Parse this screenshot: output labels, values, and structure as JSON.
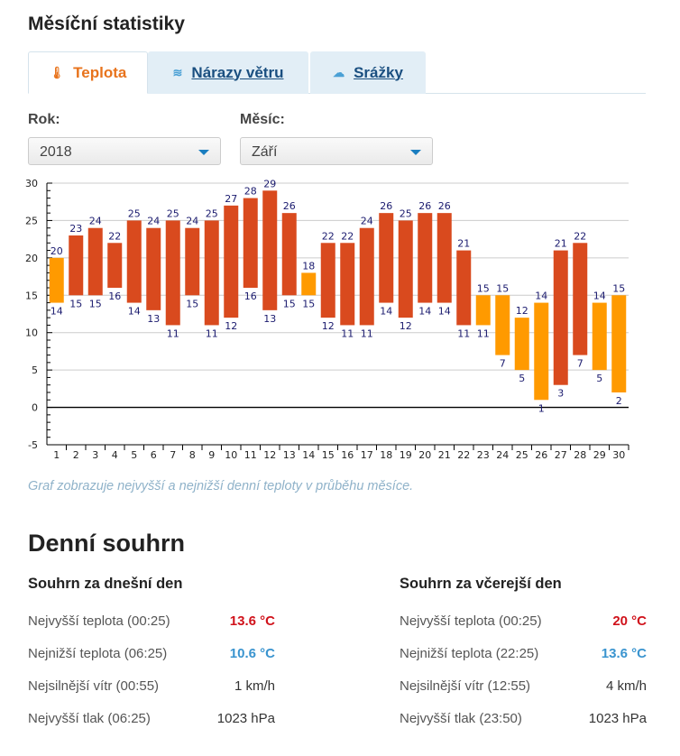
{
  "title": "Měsíční statistiky",
  "tabs": [
    {
      "label": "Teplota",
      "icon": "thermometer-icon"
    },
    {
      "label": "Nárazy větru",
      "icon": "wind-icon"
    },
    {
      "label": "Srážky",
      "icon": "rain-cloud-icon"
    }
  ],
  "filters": {
    "year_label": "Rok:",
    "year_value": "2018",
    "month_label": "Měsíc:",
    "month_value": "Září"
  },
  "colors": {
    "hot": "#d94a1e",
    "mild": "#ff9a00",
    "label": "#1a1a6e"
  },
  "chart_data": {
    "type": "bar",
    "title": "",
    "xlabel": "",
    "ylabel": "",
    "ylim": [
      -5,
      30
    ],
    "yticks": [
      -5,
      0,
      5,
      10,
      15,
      20,
      25,
      30
    ],
    "grid": true,
    "categories": [
      "1",
      "2",
      "3",
      "4",
      "5",
      "6",
      "7",
      "8",
      "9",
      "10",
      "11",
      "12",
      "13",
      "14",
      "15",
      "16",
      "17",
      "18",
      "19",
      "20",
      "21",
      "22",
      "23",
      "24",
      "25",
      "26",
      "27",
      "28",
      "29",
      "30"
    ],
    "series": [
      {
        "name": "max",
        "values": [
          20,
          23,
          24,
          22,
          25,
          24,
          25,
          24,
          25,
          27,
          28,
          29,
          26,
          18,
          22,
          22,
          24,
          26,
          25,
          26,
          26,
          21,
          15,
          15,
          12,
          14,
          21,
          22,
          14,
          15
        ]
      },
      {
        "name": "min",
        "values": [
          14,
          15,
          15,
          16,
          14,
          13,
          11,
          15,
          11,
          12,
          16,
          13,
          15,
          15,
          12,
          11,
          11,
          14,
          12,
          14,
          14,
          11,
          11,
          7,
          5,
          1,
          3,
          7,
          5,
          2
        ]
      }
    ]
  },
  "note": "Graf zobrazuje nejvyšší a nejnižší denní teploty v průběhu měsíce.",
  "summary": {
    "title": "Denní souhrn",
    "today": {
      "title": "Souhrn za dnešní den",
      "rows": [
        {
          "label": "Nejvyšší teplota (00:25)",
          "value": "13.6 °C"
        },
        {
          "label": "Nejnižší teplota (06:25)",
          "value": "10.6 °C"
        },
        {
          "label": "Nejsilnější vítr (00:55)",
          "value": "1 km/h"
        },
        {
          "label": "Nejvyšší tlak (06:25)",
          "value": "1023 hPa"
        }
      ]
    },
    "yesterday": {
      "title": "Souhrn za včerejší den",
      "rows": [
        {
          "label": "Nejvyšší teplota (00:25)",
          "value": "20 °C"
        },
        {
          "label": "Nejnižší teplota (22:25)",
          "value": "13.6 °C"
        },
        {
          "label": "Nejsilnější vítr (12:55)",
          "value": "4 km/h"
        },
        {
          "label": "Nejvyšší tlak (23:50)",
          "value": "1023 hPa"
        }
      ]
    }
  }
}
